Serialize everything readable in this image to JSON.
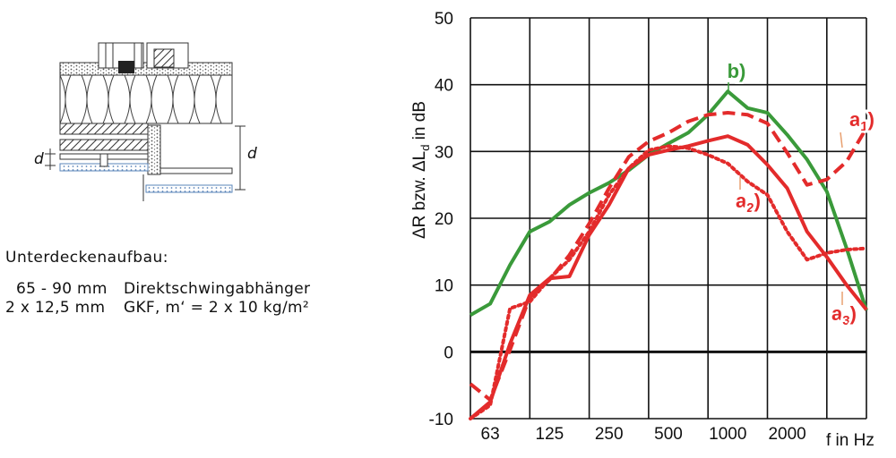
{
  "construction": {
    "title": "Unterdeckenaufbau:",
    "rows": [
      {
        "thickness": "65 - 90 mm",
        "description": "Direktschwingabhänger"
      },
      {
        "thickness": "2 x 12,5 mm",
        "description": "GKF, m‘ = 2 x 10 kg/m²"
      }
    ],
    "dimension_label": "d"
  },
  "chart_data": {
    "type": "line",
    "ylabel": "ΔR bzw. ΔL",
    "ylabel_sub": "d",
    "ylabel_unit": " in dB",
    "xlabel": "f in Hz",
    "ylim": [
      -10,
      50
    ],
    "yticks": [
      "-10",
      "0",
      "10",
      "20",
      "30",
      "40",
      "50"
    ],
    "xtick_labels": [
      "63",
      "125",
      "250",
      "500",
      "1000",
      "2000"
    ],
    "x_bands_hz": [
      50,
      63,
      80,
      100,
      125,
      160,
      200,
      250,
      315,
      400,
      500,
      630,
      800,
      1000,
      1250,
      1600,
      2000,
      2500,
      3150,
      4000,
      5000
    ],
    "grid": true,
    "colors": {
      "green": "#3a9a3a",
      "red": "#e32b2b"
    },
    "series": [
      {
        "name": "b)",
        "color": "#3a9a3a",
        "style": "solid",
        "values": [
          5.5,
          7.2,
          13,
          18,
          19.5,
          22,
          23.8,
          25.3,
          27.2,
          29.5,
          31.2,
          32.8,
          35.5,
          39,
          36.5,
          35.8,
          32.5,
          28.8,
          24,
          15.5,
          6.2
        ]
      },
      {
        "name": "a1)",
        "label_main": "a",
        "label_sub": "1",
        "color": "#e32b2b",
        "style": "dashed",
        "values": [
          -4.8,
          -7.2,
          0.3,
          8.2,
          10.8,
          14.5,
          19.2,
          24.5,
          29.2,
          31.5,
          32.8,
          34.5,
          35.5,
          35.8,
          35.5,
          34.2,
          29.8,
          25,
          25.8,
          28.5,
          33.5
        ]
      },
      {
        "name": "a2)",
        "label_main": "a",
        "label_sub": "2",
        "color": "#e32b2b",
        "style": "dotted",
        "values": [
          -10,
          -8,
          6.5,
          7.5,
          11,
          13.8,
          18,
          23.5,
          27.5,
          30.2,
          30.8,
          30.5,
          29.5,
          28.2,
          25.5,
          23.5,
          18,
          13.8,
          14.8,
          15.3,
          15.5
        ]
      },
      {
        "name": "a3)",
        "label_main": "a",
        "label_sub": "3",
        "color": "#e32b2b",
        "style": "solid",
        "values": [
          -10,
          -7.5,
          1.2,
          8.5,
          11,
          11.3,
          17.5,
          22,
          27.5,
          29.5,
          30.2,
          30.8,
          31.6,
          32.3,
          31,
          28,
          24.5,
          18,
          14.2,
          10,
          6.3
        ]
      }
    ]
  }
}
